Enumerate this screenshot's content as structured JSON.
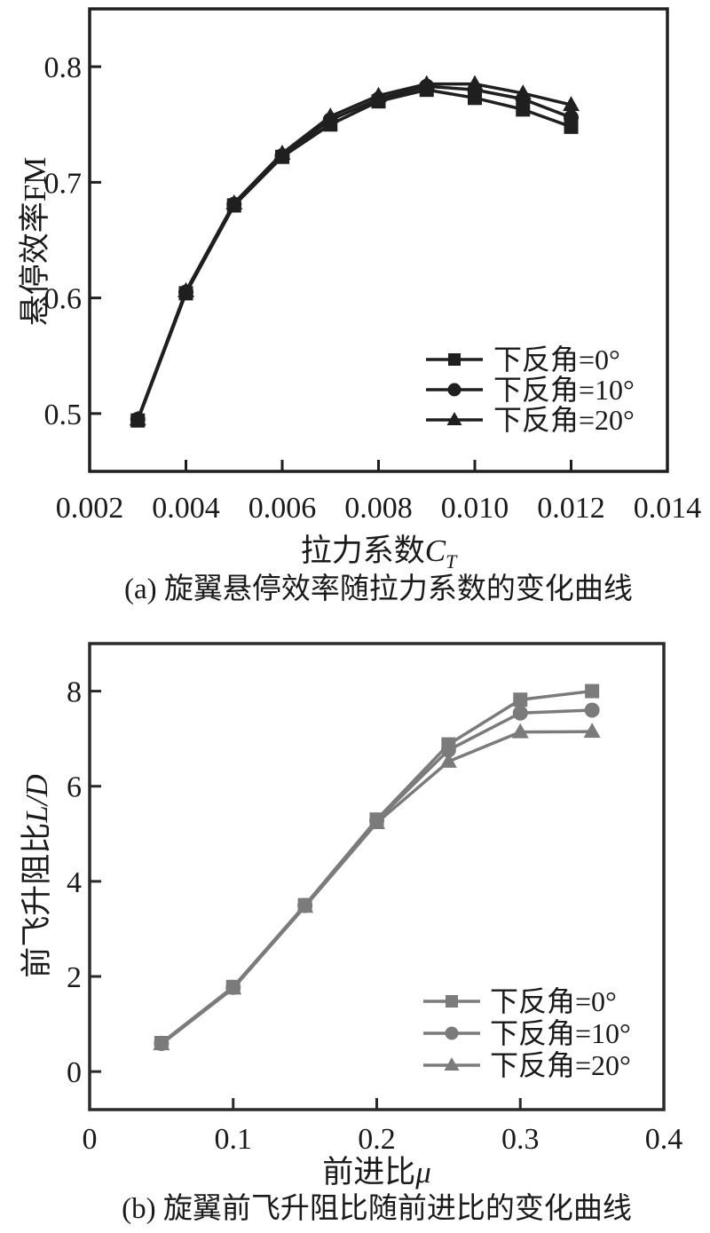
{
  "figures": {
    "a": {
      "caption": "(a) 旋翼悬停效率随拉力系数的变化曲线",
      "xlabel_prefix": "拉力系数",
      "xlabel_symbol": "C",
      "xlabel_subscript": "T",
      "ylabel_prefix": "悬停效率FM",
      "ylabel_symbol": ""
    },
    "b": {
      "caption": "(b) 旋翼前飞升阻比随前进比的变化曲线",
      "xlabel_prefix": "前进比",
      "xlabel_symbol": "μ",
      "xlabel_subscript": "",
      "ylabel_prefix": "前飞升阻比",
      "ylabel_symbol": "L/D"
    }
  },
  "chart_data": [
    {
      "id": "a",
      "type": "line",
      "title": "(a) 旋翼悬停效率随拉力系数的变化曲线",
      "xlabel": "拉力系数C_T",
      "ylabel": "悬停效率FM",
      "x": [
        0.003,
        0.004,
        0.005,
        0.006,
        0.007,
        0.008,
        0.009,
        0.01,
        0.011,
        0.012
      ],
      "series": [
        {
          "name": "下反角=0°",
          "marker": "square",
          "values": [
            0.494,
            0.604,
            0.68,
            0.722,
            0.75,
            0.77,
            0.78,
            0.773,
            0.763,
            0.748
          ]
        },
        {
          "name": "下反角=10°",
          "marker": "circle",
          "values": [
            0.495,
            0.605,
            0.681,
            0.723,
            0.754,
            0.772,
            0.783,
            0.78,
            0.772,
            0.756
          ]
        },
        {
          "name": "下反角=20°",
          "marker": "triangle",
          "values": [
            0.495,
            0.606,
            0.682,
            0.725,
            0.757,
            0.775,
            0.785,
            0.785,
            0.777,
            0.767
          ]
        }
      ],
      "xlim": [
        0.002,
        0.014
      ],
      "ylim": [
        0.45,
        0.85
      ],
      "xticks": {
        "values": [
          0.002,
          0.004,
          0.006,
          0.008,
          0.01,
          0.012,
          0.014
        ],
        "labels": [
          "0.002",
          "0.004",
          "0.006",
          "0.008",
          "0.010",
          "0.012",
          "0.014"
        ]
      },
      "yticks": {
        "values": [
          0.5,
          0.6,
          0.7,
          0.8
        ],
        "labels": [
          "0.5",
          "0.6",
          "0.7",
          "0.8"
        ]
      },
      "grid": false,
      "legend_position": "inside-lower-right",
      "line_color": "#1f1f1f",
      "axis_color": "#1f1f1f",
      "text_color": "#1a1a1a"
    },
    {
      "id": "b",
      "type": "line",
      "title": "(b) 旋翼前飞升阻比随前进比的变化曲线",
      "xlabel": "前进比μ",
      "ylabel": "前飞升阻比L/D",
      "x": [
        0.05,
        0.1,
        0.15,
        0.2,
        0.25,
        0.3,
        0.35
      ],
      "series": [
        {
          "name": "下反角=0°",
          "marker": "square",
          "values": [
            0.6,
            1.78,
            3.5,
            5.3,
            6.88,
            7.82,
            8.0
          ]
        },
        {
          "name": "下反角=10°",
          "marker": "circle",
          "values": [
            0.59,
            1.77,
            3.49,
            5.28,
            6.76,
            7.54,
            7.6
          ]
        },
        {
          "name": "下反角=20°",
          "marker": "triangle",
          "values": [
            0.58,
            1.75,
            3.47,
            5.23,
            6.52,
            7.14,
            7.15
          ]
        }
      ],
      "xlim": [
        0,
        0.4
      ],
      "ylim": [
        -0.8,
        9.0
      ],
      "xticks": {
        "values": [
          0,
          0.1,
          0.2,
          0.3,
          0.4
        ],
        "labels": [
          "0",
          "0.1",
          "0.2",
          "0.3",
          "0.4"
        ]
      },
      "yticks": {
        "values": [
          0,
          2,
          4,
          6,
          8
        ],
        "labels": [
          "0",
          "2",
          "4",
          "6",
          "8"
        ]
      },
      "grid": false,
      "legend_position": "inside-lower-right",
      "line_color": "#7b7b7b",
      "axis_color": "#2a2a2a",
      "text_color": "#1a1a1a"
    }
  ]
}
